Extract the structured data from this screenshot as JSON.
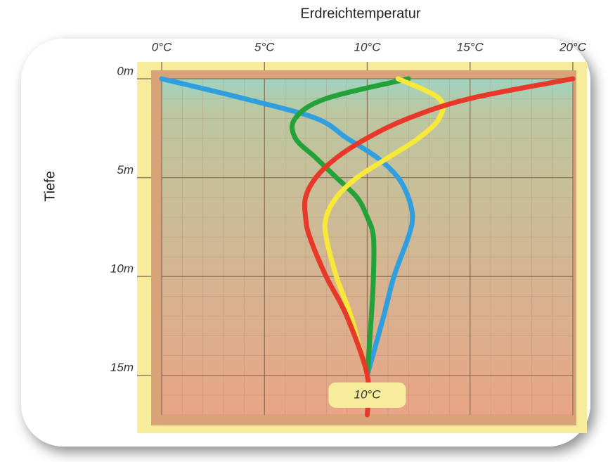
{
  "chart_data": {
    "type": "line",
    "title": "Erdreichtemperatur",
    "y_label": "Tiefe",
    "depths": [
      0,
      1,
      2,
      3,
      4,
      5,
      6,
      7,
      8,
      10,
      12,
      15,
      17
    ],
    "series": [
      {
        "color": "#2f9fe0",
        "values": [
          0,
          4,
          7.5,
          9,
          10.5,
          11.5,
          12,
          12.2,
          12,
          11.3,
          10.8,
          10,
          null
        ]
      },
      {
        "color": "#23a23a",
        "values": [
          12,
          8,
          6.5,
          6.5,
          7.5,
          8.5,
          9.5,
          10,
          10.3,
          10.3,
          10.2,
          10,
          null
        ]
      },
      {
        "color": "#f8e83a",
        "values": [
          11.5,
          13.5,
          13.5,
          12.5,
          11,
          9.5,
          8.5,
          8,
          8,
          8.5,
          9.2,
          10,
          null
        ]
      },
      {
        "color": "#e8382a",
        "values": [
          20,
          15,
          12,
          10,
          8.5,
          7.5,
          7,
          7,
          7.2,
          8,
          9,
          10,
          10
        ]
      }
    ],
    "xlim": [
      0,
      20
    ],
    "xticks": [
      {
        "value": 0,
        "label": "0°C"
      },
      {
        "value": 5,
        "label": "5°C"
      },
      {
        "value": 10,
        "label": "10°C"
      },
      {
        "value": 15,
        "label": "15°C"
      },
      {
        "value": 20,
        "label": "20°C"
      }
    ],
    "ylim": [
      0,
      17
    ],
    "yticks": [
      {
        "value": 0,
        "label": "0m"
      },
      {
        "value": 5,
        "label": "5m"
      },
      {
        "value": 10,
        "label": "10m"
      },
      {
        "value": 15,
        "label": "15m"
      }
    ],
    "annotation": {
      "text": "10°C",
      "x": 10,
      "y": 16
    },
    "grid": true
  }
}
